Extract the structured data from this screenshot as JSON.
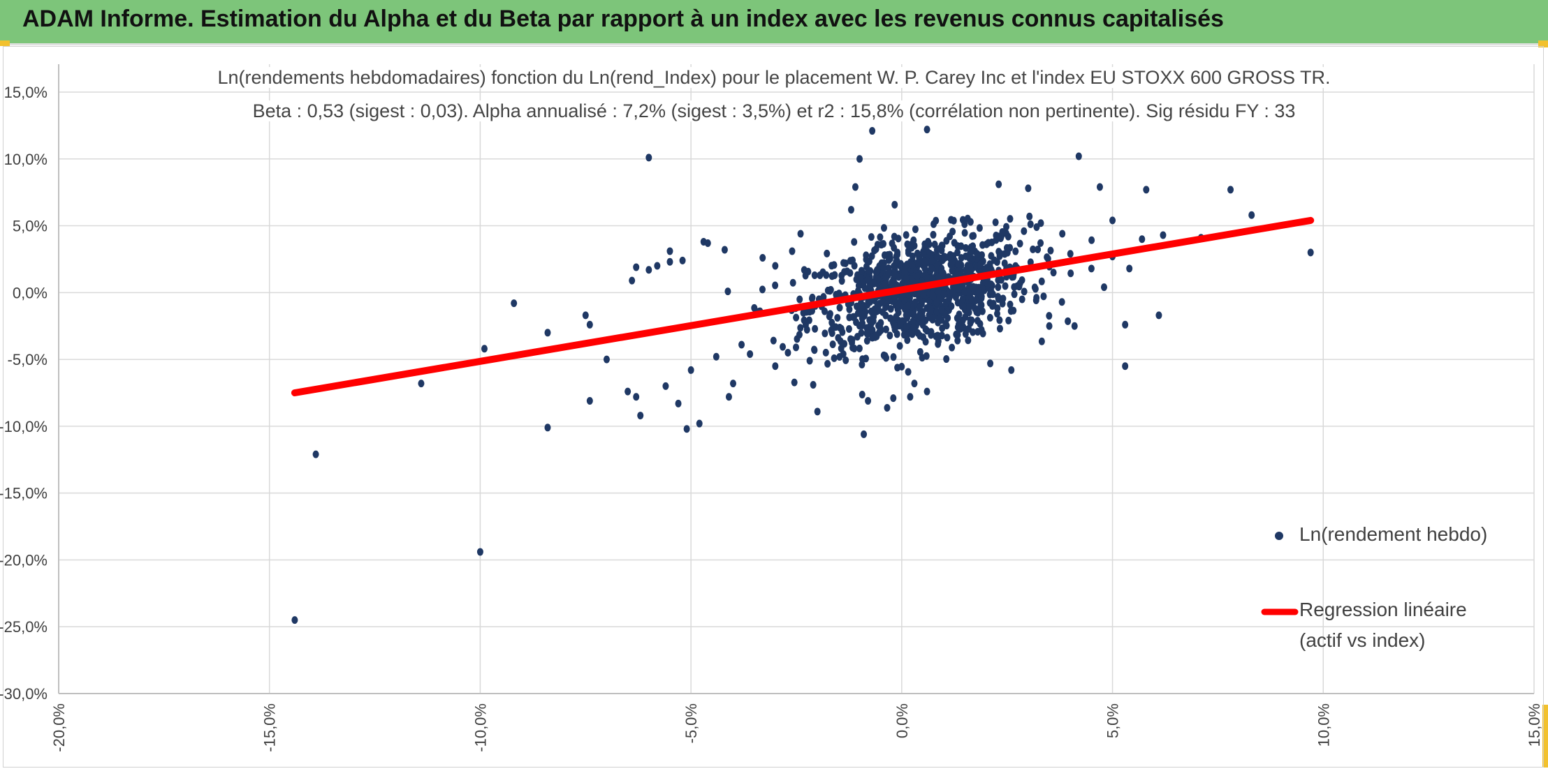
{
  "header": {
    "title": "ADAM Informe. Estimation du Alpha et du Beta par rapport à un index avec les revenus connus capitalisés",
    "bg_color": "#7dc57a",
    "corner_color": "#f2c12e"
  },
  "chart_data": {
    "type": "scatter",
    "title": "Ln(rendements hebdomadaires) fonction du Ln(rend_Index) pour le placement W. P. Carey Inc et l'index EU STOXX 600 GROSS TR.",
    "subtitle": "Beta : 0,53 (sigest : 0,03). Alpha annualisé : 7,2% (sigest : 3,5%) et r2 : 15,8% (corrélation non pertinente). Sig résidu FY : 33",
    "xlim": [
      -0.2,
      0.15
    ],
    "ylim": [
      -0.3,
      0.15
    ],
    "x_ticks": [
      -0.2,
      -0.15,
      -0.1,
      -0.05,
      0.0,
      0.05,
      0.1,
      0.15
    ],
    "x_tick_labels": [
      "-20,0%",
      "-15,0%",
      "-10,0%",
      "-5,0%",
      "0,0%",
      "5,0%",
      "10,0%",
      "15,0%"
    ],
    "y_ticks": [
      0.15,
      0.1,
      0.05,
      0.0,
      -0.05,
      -0.1,
      -0.15,
      -0.2,
      -0.25,
      -0.3
    ],
    "y_tick_labels": [
      "15,0%",
      "10,0%",
      "5,0%",
      "0,0%",
      "-5,0%",
      "-10,0%",
      "-15,0%",
      "-20,0%",
      "-25,0%",
      "-30,0%"
    ],
    "grid": true,
    "legend_position": "right",
    "series": [
      {
        "name": "Ln(rendement hebdo)",
        "kind": "scatter",
        "color": "#1f3864",
        "cluster": {
          "count": 1000,
          "center": [
            0.004,
            0.001
          ],
          "sd_x": 0.013,
          "sd_y": 0.023,
          "beta": 0.53
        },
        "points": [
          [
            -0.144,
            -0.245
          ],
          [
            -0.1,
            -0.194
          ],
          [
            -0.139,
            -0.121
          ],
          [
            -0.114,
            -0.068
          ],
          [
            -0.084,
            -0.101
          ],
          [
            -0.092,
            -0.008
          ],
          [
            -0.099,
            -0.042
          ],
          [
            -0.084,
            -0.03
          ],
          [
            -0.074,
            -0.081
          ],
          [
            -0.075,
            -0.017
          ],
          [
            -0.074,
            -0.024
          ],
          [
            -0.07,
            -0.05
          ],
          [
            -0.065,
            -0.074
          ],
          [
            -0.063,
            -0.078
          ],
          [
            -0.062,
            -0.092
          ],
          [
            -0.06,
            0.101
          ],
          [
            -0.064,
            0.009
          ],
          [
            -0.063,
            0.019
          ],
          [
            -0.06,
            0.017
          ],
          [
            -0.058,
            0.02
          ],
          [
            -0.056,
            -0.07
          ],
          [
            -0.055,
            0.023
          ],
          [
            -0.053,
            -0.083
          ],
          [
            -0.051,
            -0.102
          ],
          [
            -0.048,
            -0.098
          ],
          [
            -0.05,
            -0.058
          ],
          [
            -0.052,
            0.024
          ],
          [
            -0.055,
            0.031
          ],
          [
            -0.047,
            0.038
          ],
          [
            -0.046,
            0.037
          ],
          [
            -0.044,
            -0.048
          ],
          [
            -0.041,
            -0.078
          ],
          [
            -0.04,
            -0.068
          ],
          [
            -0.042,
            0.032
          ],
          [
            -0.036,
            -0.046
          ],
          [
            -0.03,
            -0.055
          ],
          [
            -0.02,
            -0.089
          ],
          [
            -0.009,
            -0.106
          ],
          [
            -0.008,
            -0.081
          ],
          [
            -0.01,
            0.1
          ],
          [
            -0.011,
            0.079
          ],
          [
            -0.012,
            0.062
          ],
          [
            -0.007,
            0.121
          ],
          [
            0.006,
            0.122
          ],
          [
            -0.002,
            -0.079
          ],
          [
            0.002,
            -0.078
          ],
          [
            0.003,
            -0.068
          ],
          [
            0.006,
            -0.074
          ],
          [
            0.021,
            -0.053
          ],
          [
            0.026,
            -0.058
          ],
          [
            0.03,
            0.078
          ],
          [
            0.023,
            0.081
          ],
          [
            0.032,
            0.049
          ],
          [
            0.041,
            -0.025
          ],
          [
            0.042,
            0.102
          ],
          [
            0.047,
            0.079
          ],
          [
            0.05,
            0.054
          ],
          [
            0.05,
            0.027
          ],
          [
            0.053,
            -0.055
          ],
          [
            0.053,
            -0.024
          ],
          [
            0.054,
            0.018
          ],
          [
            0.057,
            0.04
          ],
          [
            0.058,
            0.077
          ],
          [
            0.061,
            -0.017
          ],
          [
            0.062,
            0.043
          ],
          [
            0.071,
            0.041
          ],
          [
            0.078,
            0.077
          ],
          [
            0.083,
            0.058
          ],
          [
            0.097,
            0.03
          ],
          [
            0.045,
            0.018
          ],
          [
            0.048,
            0.004
          ],
          [
            0.04,
            0.029
          ],
          [
            0.036,
            0.015
          ],
          [
            0.038,
            -0.007
          ],
          [
            0.035,
            -0.025
          ],
          [
            0.033,
            0.052
          ],
          [
            0.029,
            0.046
          ],
          [
            -0.03,
            0.02
          ],
          [
            -0.026,
            0.031
          ],
          [
            -0.033,
            0.026
          ],
          [
            -0.038,
            -0.039
          ],
          [
            -0.027,
            -0.045
          ],
          [
            -0.024,
            0.044
          ],
          [
            -0.021,
            -0.069
          ]
        ]
      },
      {
        "name": "Regression linéaire (actif vs index)",
        "kind": "line",
        "color": "#ff0000",
        "x": [
          -0.144,
          0.097
        ],
        "y": [
          -0.075,
          0.054
        ]
      }
    ]
  },
  "legend": {
    "series1_label": "Ln(rendement hebdo)",
    "series2_label_line1": "Regression linéaire",
    "series2_label_line2": "(actif vs index)"
  }
}
